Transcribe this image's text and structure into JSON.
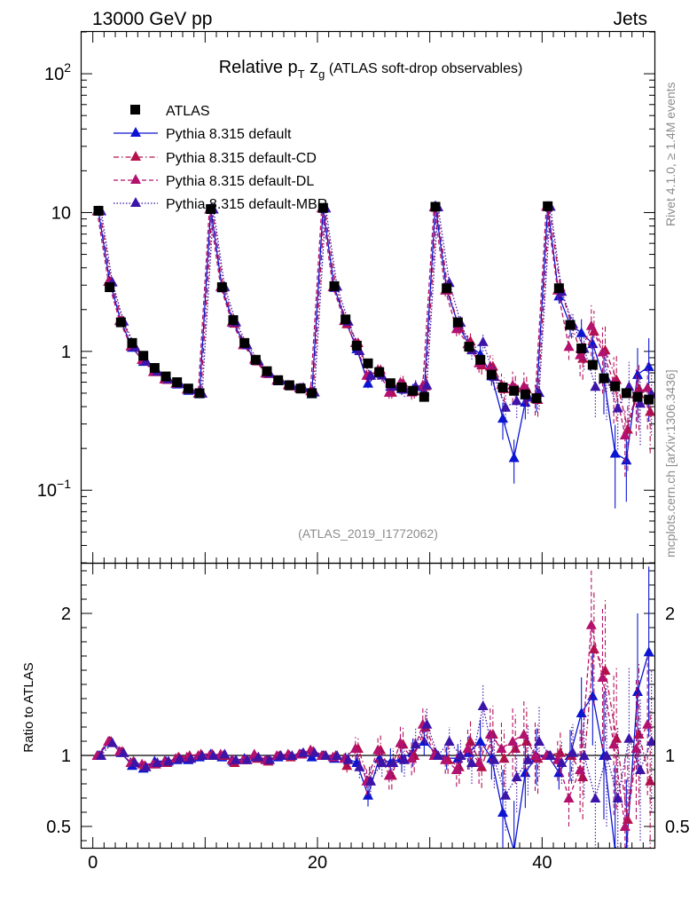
{
  "header": {
    "left": "13000 GeV pp",
    "right": "Jets"
  },
  "side_labels": {
    "rivet": "Rivet 4.1.0, ≥ 1.4M events",
    "mcplots": "mcplots.cern.ch [arXiv:1306.3436]"
  },
  "colors": {
    "atlas": "#000000",
    "default": "#0a14d2",
    "cd": "#b4104a",
    "dl": "#b4106e",
    "mbr": "#3c14a8"
  },
  "chart_data": {
    "type": "line",
    "title": {
      "prefix": "Relative p",
      "sub_T": "T",
      "mid": " z",
      "sub_g": "g",
      "suffix": " (ATLAS soft-drop observables)"
    },
    "analysis_id": "(ATLAS_2019_I1772062)",
    "xlabel": "",
    "ylabel_ratio": "Ratio to ATLAS",
    "xlim": [
      -1,
      50
    ],
    "ylim_main": [
      0.03,
      200
    ],
    "ylim_ratio": [
      0.35,
      2.35
    ],
    "main_ticks": [
      {
        "v": 0.1,
        "base": "10",
        "exp": "−1"
      },
      {
        "v": 1,
        "base": "1",
        "exp": ""
      },
      {
        "v": 10,
        "base": "10",
        "exp": ""
      },
      {
        "v": 100,
        "base": "10",
        "exp": "2"
      }
    ],
    "ratio_ticks": [
      {
        "v": 0.5,
        "label": "0.5"
      },
      {
        "v": 1,
        "label": "1"
      },
      {
        "v": 2,
        "label": "2"
      }
    ],
    "x_ticks": [
      {
        "v": 0,
        "label": "0"
      },
      {
        "v": 20,
        "label": "20"
      },
      {
        "v": 40,
        "label": "40"
      }
    ],
    "x": [
      0.5,
      1.5,
      2.5,
      3.5,
      4.5,
      5.5,
      6.5,
      7.5,
      8.5,
      9.5,
      10.5,
      11.5,
      12.5,
      13.5,
      14.5,
      15.5,
      16.5,
      17.5,
      18.5,
      19.5,
      20.5,
      21.5,
      22.5,
      23.5,
      24.5,
      25.5,
      26.5,
      27.5,
      28.5,
      29.5,
      30.5,
      31.5,
      32.5,
      33.5,
      34.5,
      35.5,
      36.5,
      37.5,
      38.5,
      39.5,
      40.5,
      41.5,
      42.5,
      43.5,
      44.5,
      45.5,
      46.5,
      47.5,
      48.5,
      49.5
    ],
    "data": {
      "name": "ATLAS",
      "values": [
        10.3,
        2.9,
        1.62,
        1.15,
        0.93,
        0.76,
        0.66,
        0.6,
        0.54,
        0.5,
        10.6,
        2.9,
        1.68,
        1.15,
        0.87,
        0.72,
        0.62,
        0.57,
        0.54,
        0.5,
        10.8,
        2.95,
        1.7,
        1.1,
        0.82,
        0.71,
        0.59,
        0.55,
        0.52,
        0.47,
        11.0,
        2.85,
        1.62,
        1.08,
        0.87,
        0.68,
        0.55,
        0.52,
        0.49,
        0.46,
        11.1,
        2.85,
        1.55,
        1.05,
        0.8,
        0.64,
        0.56,
        0.5,
        0.47,
        0.45
      ]
    },
    "series": [
      {
        "name": "Pythia 8.315 default",
        "style": "solid",
        "color": "#0a14d2",
        "offset": 0,
        "ratio": [
          1.0,
          1.1,
          1.02,
          0.93,
          0.91,
          0.96,
          0.96,
          0.97,
          0.97,
          0.99,
          1.01,
          0.99,
          0.96,
          0.98,
          0.99,
          0.97,
          0.99,
          1.0,
          1.01,
          0.99,
          1.0,
          0.98,
          0.98,
          0.95,
          0.72,
          0.98,
          0.95,
          0.98,
          1.02,
          1.1,
          1.02,
          0.98,
          0.98,
          1.02,
          1.1,
          0.98,
          0.6,
          0.33,
          0.88,
          0.99,
          1.0,
          0.88,
          1.0,
          1.3,
          1.42,
          1.0,
          0.33,
          0.33,
          1.45,
          1.73
        ],
        "err": [
          0.01,
          0.02,
          0.02,
          0.02,
          0.02,
          0.02,
          0.02,
          0.02,
          0.02,
          0.02,
          0.01,
          0.02,
          0.02,
          0.02,
          0.02,
          0.03,
          0.03,
          0.03,
          0.03,
          0.03,
          0.01,
          0.03,
          0.04,
          0.06,
          0.08,
          0.08,
          0.1,
          0.1,
          0.1,
          0.1,
          0.02,
          0.08,
          0.1,
          0.12,
          0.15,
          0.15,
          0.3,
          0.35,
          0.25,
          0.2,
          0.03,
          0.12,
          0.18,
          0.25,
          0.35,
          0.45,
          0.6,
          0.5,
          0.55,
          0.6
        ]
      },
      {
        "name": "Pythia 8.315 default-CD",
        "style": "dashdot",
        "color": "#b4104a",
        "offset": 0.12,
        "ratio": [
          1.0,
          1.1,
          1.03,
          0.96,
          0.93,
          0.94,
          0.95,
          0.99,
          1.0,
          1.01,
          1.01,
          1.0,
          0.95,
          0.97,
          0.98,
          0.96,
          1.0,
          0.99,
          1.01,
          1.03,
          1.0,
          1.0,
          0.93,
          1.05,
          0.82,
          1.04,
          0.86,
          1.08,
          1.0,
          1.2,
          1.0,
          0.97,
          0.92,
          1.1,
          0.92,
          1.15,
          0.98,
          1.05,
          1.1,
          0.98,
          1.0,
          1.02,
          1.0,
          0.85,
          1.75,
          1.6,
          1.12,
          0.55,
          1.15,
          0.82
        ],
        "err": [
          0.01,
          0.02,
          0.02,
          0.02,
          0.02,
          0.02,
          0.02,
          0.02,
          0.02,
          0.02,
          0.01,
          0.02,
          0.02,
          0.02,
          0.02,
          0.03,
          0.03,
          0.03,
          0.03,
          0.03,
          0.01,
          0.03,
          0.05,
          0.08,
          0.1,
          0.1,
          0.1,
          0.12,
          0.12,
          0.12,
          0.02,
          0.1,
          0.12,
          0.15,
          0.15,
          0.2,
          0.2,
          0.25,
          0.25,
          0.25,
          0.03,
          0.15,
          0.2,
          0.3,
          0.4,
          0.5,
          0.5,
          0.5,
          0.5,
          0.5
        ]
      },
      {
        "name": "Pythia 8.315 default-DL",
        "style": "dashed",
        "color": "#b4106e",
        "offset": -0.12,
        "ratio": [
          1.0,
          1.1,
          1.03,
          0.95,
          0.94,
          0.94,
          0.96,
          0.98,
          0.99,
          1.0,
          1.0,
          1.01,
          0.97,
          0.97,
          1.01,
          0.97,
          1.0,
          1.01,
          1.01,
          1.04,
          1.0,
          0.99,
          0.98,
          1.05,
          0.82,
          1.04,
          0.86,
          1.09,
          0.98,
          1.22,
          1.0,
          0.97,
          0.9,
          1.05,
          0.95,
          1.15,
          1.05,
          1.1,
          1.15,
          1.0,
          1.0,
          0.97,
          0.7,
          0.9,
          1.92,
          1.55,
          1.08,
          0.5,
          1.05,
          1.22
        ],
        "err": [
          0.01,
          0.02,
          0.02,
          0.02,
          0.02,
          0.02,
          0.02,
          0.02,
          0.02,
          0.02,
          0.01,
          0.02,
          0.02,
          0.02,
          0.02,
          0.03,
          0.03,
          0.03,
          0.03,
          0.03,
          0.01,
          0.03,
          0.05,
          0.08,
          0.1,
          0.1,
          0.1,
          0.12,
          0.12,
          0.12,
          0.02,
          0.1,
          0.12,
          0.15,
          0.15,
          0.2,
          0.2,
          0.25,
          0.25,
          0.25,
          0.03,
          0.15,
          0.2,
          0.3,
          0.4,
          0.5,
          0.5,
          0.5,
          0.5,
          0.5
        ]
      },
      {
        "name": "Pythia 8.315 default-MBR",
        "style": "dotted",
        "color": "#3c14a8",
        "offset": 0.24,
        "ratio": [
          1.0,
          1.09,
          1.02,
          0.95,
          0.92,
          0.95,
          0.96,
          0.98,
          0.98,
          1.0,
          1.0,
          1.01,
          0.97,
          0.97,
          0.99,
          0.97,
          1.0,
          1.0,
          1.02,
          1.02,
          1.0,
          1.0,
          0.97,
          0.92,
          0.82,
          0.95,
          0.95,
          0.97,
          1.08,
          1.22,
          1.0,
          1.1,
          1.0,
          0.95,
          1.35,
          0.97,
          0.72,
          0.85,
          0.97,
          1.1,
          1.0,
          0.95,
          1.02,
          1.0,
          0.7,
          1.0,
          0.7,
          1.12,
          0.9,
          1.1
        ],
        "err": [
          0.01,
          0.02,
          0.02,
          0.02,
          0.02,
          0.02,
          0.02,
          0.02,
          0.02,
          0.02,
          0.01,
          0.02,
          0.02,
          0.02,
          0.02,
          0.03,
          0.03,
          0.03,
          0.03,
          0.03,
          0.01,
          0.03,
          0.05,
          0.08,
          0.1,
          0.1,
          0.1,
          0.12,
          0.12,
          0.12,
          0.02,
          0.1,
          0.12,
          0.15,
          0.15,
          0.2,
          0.25,
          0.25,
          0.25,
          0.25,
          0.03,
          0.15,
          0.2,
          0.3,
          0.4,
          0.5,
          0.5,
          0.5,
          0.5,
          0.5
        ]
      }
    ]
  }
}
